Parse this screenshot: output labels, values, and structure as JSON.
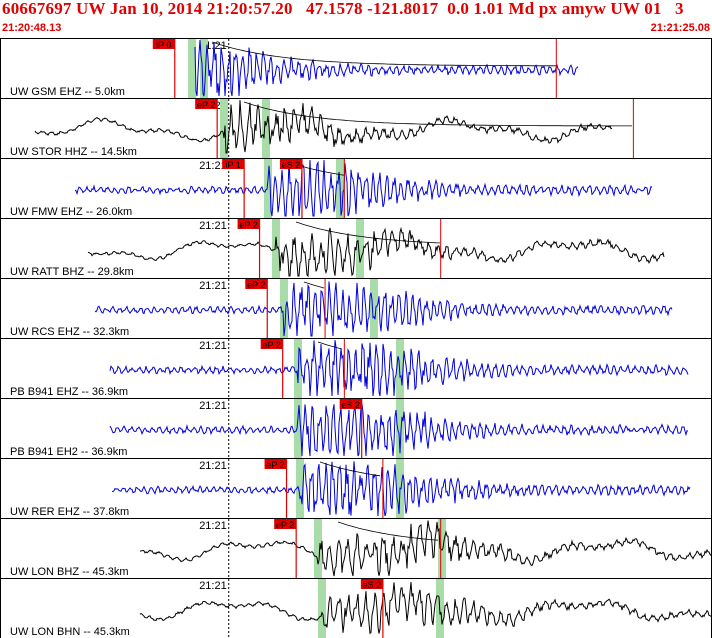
{
  "header": {
    "title": "60667697 UW Jan 10, 2014 21:20:57.20   47.1578 -121.8017  0.0 1.01 Md px amyw UW 01   3",
    "start_time": "21:20:48.13",
    "end_time": "21:21:25.08"
  },
  "colors": {
    "header_text": "#e00000",
    "pick": "#e00000",
    "trace_z": "#0000dd",
    "trace_h": "#000000",
    "phase_window": "#a8dca8",
    "coda": "#000000"
  },
  "chart_data": {
    "type": "line",
    "title": "60667697 UW Jan 10, 2014 21:20:57.20",
    "x_range": [
      "21:20:48.13",
      "21:21:25.08"
    ],
    "tick_label": "21:21",
    "traces": [
      {
        "label": "UW GSM EHZ -- 5.0km",
        "color": "blue",
        "picks": [
          {
            "label": "iP 0",
            "time": "21:20:57.2"
          }
        ],
        "coda_end": "21:21:17"
      },
      {
        "label": "UW STOR HHZ -- 14.5km",
        "color": "black",
        "picks": [
          {
            "label": "eP 2",
            "time": "21:20:59.4"
          }
        ],
        "coda_end": "21:21:21"
      },
      {
        "label": "UW FMW EHZ -- 26.0km",
        "color": "blue",
        "picks": [
          {
            "label": "iP 1",
            "time": "21:21:00.8"
          },
          {
            "label": "eS 2",
            "time": "21:21:03.8"
          }
        ],
        "coda_end": "21:21:06"
      },
      {
        "label": "UW RATT BHZ -- 29.8km",
        "color": "black",
        "picks": [
          {
            "label": "eP 2",
            "time": "21:21:01.6"
          }
        ],
        "coda_end": "21:21:11"
      },
      {
        "label": "UW RCS EHZ -- 32.3km",
        "color": "blue",
        "picks": [
          {
            "label": "eP 2",
            "time": "21:21:02.0"
          }
        ],
        "coda_end": "21:21:05"
      },
      {
        "label": "PB B941 EHZ -- 36.9km",
        "color": "blue",
        "picks": [
          {
            "label": "eP 2",
            "time": "21:21:02.8"
          }
        ],
        "coda_end": "21:21:06"
      },
      {
        "label": "PB B941 EH2 -- 36.9km",
        "color": "blue",
        "picks": [
          {
            "label": "eS 2",
            "time": "21:21:06.9"
          }
        ],
        "coda_end": null
      },
      {
        "label": "UW RER EHZ -- 37.8km",
        "color": "blue",
        "picks": [
          {
            "label": "eP 2",
            "time": "21:21:03.0"
          }
        ],
        "coda_end": "21:21:08"
      },
      {
        "label": "UW LON BHZ -- 45.3km",
        "color": "black",
        "picks": [
          {
            "label": "eP 2",
            "time": "21:21:03.5"
          }
        ],
        "coda_end": "21:21:11"
      },
      {
        "label": "UW LON BHN -- 45.3km",
        "color": "black",
        "picks": [
          {
            "label": "eS 2",
            "time": "21:21:08.0"
          }
        ],
        "coda_end": null
      }
    ]
  }
}
